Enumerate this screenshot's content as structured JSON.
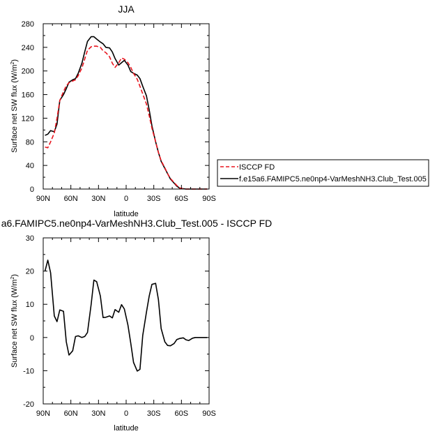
{
  "top_title": "JJA",
  "bottom_title": "a6.FAMIPC5.ne0np4-VarMeshNH3.Club_Test.005 - ISCCP FD",
  "top_ylabel_main": "Surface net SW flux (W/m",
  "top_ylabel_sup": "2",
  "top_ylabel_end": ")",
  "bottom_ylabel_main": "Surface net SW flux (W/m",
  "bottom_ylabel_sup": "2",
  "bottom_ylabel_end": ")",
  "top_xlabel": "latitude",
  "bottom_xlabel": "latitude",
  "x_tick_labels": [
    "90N",
    "60N",
    "30N",
    "0",
    "30S",
    "60S",
    "90S"
  ],
  "top_y_tick_labels": [
    "0",
    "40",
    "80",
    "120",
    "160",
    "200",
    "240",
    "280"
  ],
  "bottom_y_tick_labels": [
    "-20",
    "-10",
    "0",
    "10",
    "20",
    "30"
  ],
  "legend": {
    "isccp_label": "ISCCP FD",
    "model_label": "f.e15a6.FAMIPC5.ne0np4-VarMeshNH3.Club_Test.005"
  },
  "colors": {
    "isccp": "#e8141d",
    "model": "#000000",
    "diff": "#000000"
  },
  "chart_data": [
    {
      "type": "line",
      "title": "JJA",
      "xlabel": "latitude",
      "ylabel": "Surface net SW flux (W/m2)",
      "xlim": [
        90,
        -90
      ],
      "ylim": [
        0,
        280
      ],
      "x_ticks": [
        90,
        60,
        30,
        0,
        -30,
        -60,
        -90
      ],
      "y_ticks": [
        0,
        40,
        80,
        120,
        160,
        200,
        240,
        280
      ],
      "legend_position": "right",
      "series": [
        {
          "name": "ISCCP FD",
          "style": "dashed",
          "color": "#e8141d",
          "x": [
            88,
            85,
            82,
            78,
            75,
            72,
            68,
            65,
            62,
            58,
            55,
            52,
            48,
            45,
            42,
            38,
            35,
            32,
            28,
            25,
            22,
            18,
            15,
            12,
            8,
            5,
            2,
            -2,
            -5,
            -8,
            -12,
            -15,
            -18,
            -22,
            -25,
            -28,
            -32,
            -35,
            -38,
            -42,
            -45,
            -48,
            -52,
            -55,
            -58,
            -62,
            -65,
            -68,
            -72,
            -75,
            -78,
            -82,
            -85,
            -88
          ],
          "y": [
            71,
            70,
            80,
            95,
            120,
            150,
            165,
            175,
            180,
            183,
            185,
            192,
            205,
            220,
            235,
            241,
            242,
            242,
            240,
            234,
            231,
            224,
            213,
            206,
            214,
            222,
            220,
            214,
            206,
            196,
            186,
            174,
            161,
            144,
            124,
            103,
            80,
            62,
            48,
            36,
            26,
            18,
            11,
            6,
            2,
            0.5,
            0,
            0,
            0,
            0,
            0,
            0,
            0,
            0
          ]
        },
        {
          "name": "f.e15a6.FAMIPC5.ne0np4-VarMeshNH3.Club_Test.005",
          "style": "solid",
          "color": "#000000",
          "x": [
            88,
            85,
            82,
            78,
            75,
            72,
            68,
            65,
            62,
            58,
            55,
            52,
            48,
            45,
            42,
            38,
            35,
            32,
            28,
            25,
            22,
            18,
            15,
            12,
            8,
            5,
            2,
            -2,
            -5,
            -8,
            -12,
            -15,
            -18,
            -22,
            -25,
            -28,
            -32,
            -35,
            -38,
            -42,
            -45,
            -48,
            -52,
            -55,
            -58,
            -62,
            -65,
            -68,
            -72,
            -75,
            -78,
            -82,
            -85,
            -88
          ],
          "y": [
            91,
            93,
            99,
            97,
            110,
            150,
            160,
            170,
            181,
            185,
            187,
            196,
            213,
            232,
            250,
            258,
            258,
            254,
            249,
            246,
            240,
            239,
            232,
            221,
            210,
            214,
            218,
            210,
            199,
            196,
            193,
            187,
            174,
            158,
            134,
            107,
            80,
            62,
            47,
            35,
            26,
            17,
            10,
            5,
            1.5,
            0.5,
            0,
            0,
            0,
            0,
            0,
            0,
            0,
            0
          ]
        }
      ]
    },
    {
      "type": "line",
      "title": "a6.FAMIPC5.ne0np4-VarMeshNH3.Club_Test.005 - ISCCP FD",
      "xlabel": "latitude",
      "ylabel": "Surface net SW flux (W/m2)",
      "xlim": [
        90,
        -90
      ],
      "ylim": [
        -20,
        30
      ],
      "x_ticks": [
        90,
        60,
        30,
        0,
        -30,
        -60,
        -90
      ],
      "y_ticks": [
        -20,
        -10,
        0,
        10,
        20,
        30
      ],
      "series": [
        {
          "style": "solid",
          "color": "#000000",
          "x": [
            88,
            85,
            82,
            78,
            75,
            72,
            68,
            65,
            62,
            58,
            55,
            52,
            48,
            45,
            42,
            38,
            35,
            32,
            28,
            25,
            22,
            18,
            15,
            12,
            8,
            5,
            2,
            -2,
            -5,
            -8,
            -12,
            -15,
            -18,
            -22,
            -25,
            -28,
            -32,
            -35,
            -38,
            -42,
            -45,
            -48,
            -52,
            -55,
            -58,
            -62,
            -65,
            -68,
            -72,
            -75,
            -78,
            -82,
            -85,
            -88
          ],
          "y": [
            20,
            23.3,
            19.5,
            6.5,
            4.8,
            8.3,
            7.9,
            -1.3,
            -5.3,
            -4,
            0.3,
            0.5,
            0,
            0.3,
            1.5,
            10,
            17.3,
            16.8,
            12.5,
            6,
            6.1,
            6.5,
            5.9,
            8.4,
            7.6,
            9.9,
            8.6,
            3.7,
            -1.7,
            -7.5,
            -10.1,
            -9.6,
            0.6,
            7.6,
            12.5,
            16,
            16.3,
            11.4,
            2.7,
            -1.3,
            -2.4,
            -2.5,
            -1.8,
            -0.6,
            -0.3,
            -0.1,
            -0.7,
            -0.9,
            -0.2,
            0,
            0,
            0,
            0,
            0
          ]
        }
      ]
    }
  ]
}
